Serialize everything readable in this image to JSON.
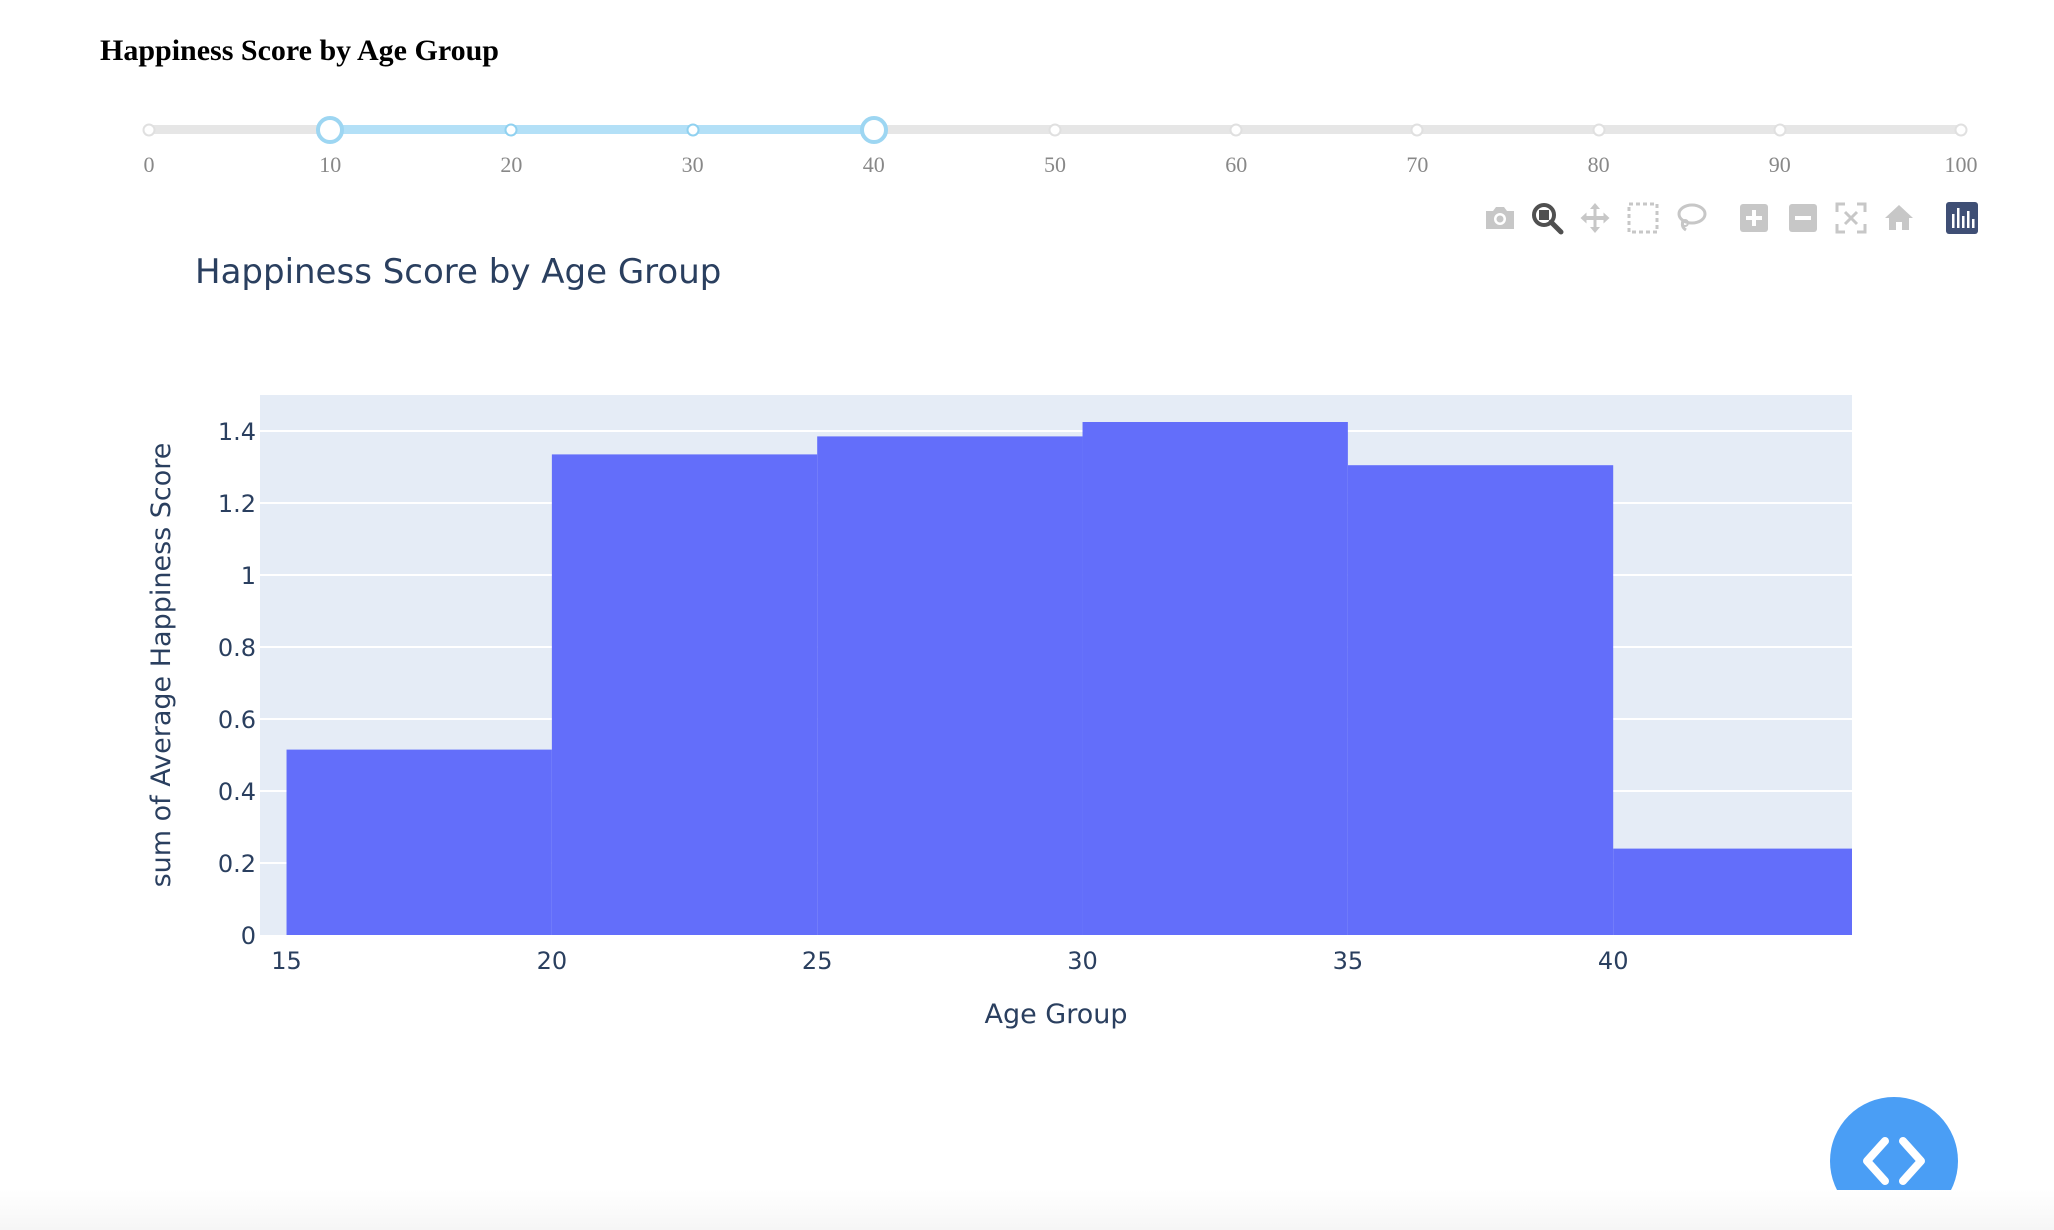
{
  "page": {
    "heading": "Happiness Score by Age Group"
  },
  "slider": {
    "marks": [
      "0",
      "10",
      "20",
      "30",
      "40",
      "50",
      "60",
      "70",
      "80",
      "90",
      "100"
    ],
    "min": 0,
    "max": 100,
    "step": 10,
    "selected_range": [
      10,
      40
    ]
  },
  "modebar": {
    "buttons": [
      "camera-icon",
      "zoom-icon",
      "pan-icon",
      "box-select-icon",
      "lasso-select-icon",
      "zoom-in-icon",
      "zoom-out-icon",
      "autoscale-icon",
      "reset-axes-icon",
      "plotly-logo-icon"
    ],
    "active_button": "zoom-icon"
  },
  "colors": {
    "bar": "#636efa",
    "plot_bg": "#e5ecf6",
    "text": "#2a3f5f",
    "slider_track": "#b3e0f7",
    "fab": "#4a9ef5"
  },
  "chart_data": {
    "type": "bar",
    "title": "Happiness Score by Age Group",
    "xlabel": "Age Group",
    "ylabel": "sum of Average Happiness Score",
    "bins": [
      {
        "start": 15,
        "end": 20,
        "value": 0.515
      },
      {
        "start": 20,
        "end": 25,
        "value": 1.335
      },
      {
        "start": 25,
        "end": 30,
        "value": 1.385
      },
      {
        "start": 30,
        "end": 35,
        "value": 1.425
      },
      {
        "start": 35,
        "end": 40,
        "value": 1.305
      },
      {
        "start": 40,
        "end": 45,
        "value": 0.24
      }
    ],
    "xlim": [
      14.5,
      44.5
    ],
    "ylim": [
      0,
      1.5
    ],
    "xticks": [
      15,
      20,
      25,
      30,
      35,
      40
    ],
    "xtick_labels": [
      "15",
      "20",
      "25",
      "30",
      "35",
      "40"
    ],
    "yticks": [
      0,
      0.2,
      0.4,
      0.6,
      0.8,
      1,
      1.2,
      1.4
    ],
    "ytick_labels": [
      "0",
      "0.2",
      "0.4",
      "0.6",
      "0.8",
      "1",
      "1.2",
      "1.4"
    ],
    "grid": true
  }
}
